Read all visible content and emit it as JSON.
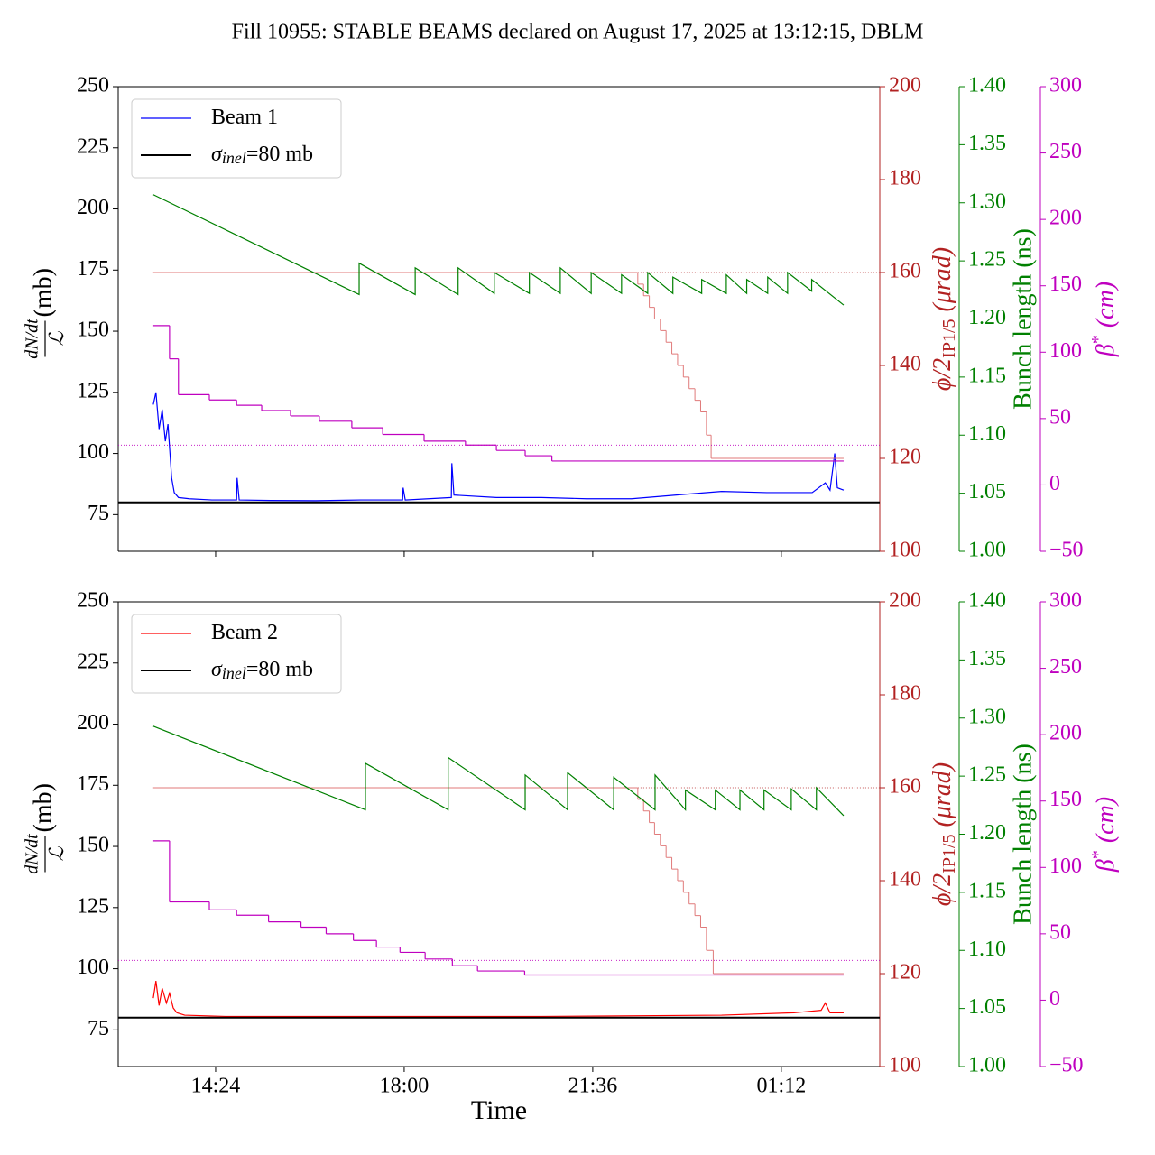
{
  "title": "Fill 10955: STABLE BEAMS declared on August 17, 2025 at 13:12:15, DBLM",
  "chart_data": [
    {
      "type": "line",
      "legend": "upper left",
      "xlim": [
        12.54,
        27.08
      ],
      "xticks": [
        14.4,
        18,
        21.6,
        25.2
      ],
      "ylim": [
        60,
        250
      ],
      "yticks": [
        75,
        100,
        125,
        150,
        175,
        200,
        225,
        250
      ],
      "ylabel": {
        "numerator": "dN/dt",
        "denominator": "ℒ",
        "unit": "(mb)"
      },
      "y2lim": [
        100,
        200
      ],
      "y2ticks": [
        100,
        120,
        140,
        160,
        180,
        200
      ],
      "y2color": "#b22222",
      "y2label": {
        "text": "ϕ/2",
        "subscript": "IP1/5",
        "unit": "(μrad)"
      },
      "y3lim": [
        1.0,
        1.4
      ],
      "y3color": "#008000",
      "y3ticks": [
        {
          "value": 1.0,
          "label": "1.00"
        },
        {
          "value": 1.05,
          "label": "1.05"
        },
        {
          "value": 1.1,
          "label": "1.10"
        },
        {
          "value": 1.15,
          "label": "1.15"
        },
        {
          "value": 1.2,
          "label": "1.20"
        },
        {
          "value": 1.25,
          "label": "1.25"
        },
        {
          "value": 1.3,
          "label": "1.30"
        },
        {
          "value": 1.35,
          "label": "1.35"
        },
        {
          "value": 1.4,
          "label": "1.40"
        }
      ],
      "y3label": "Bunch length (ns)",
      "y4lim": [
        -50,
        300
      ],
      "y4color": "#bf00bf",
      "y4ticks": [
        {
          "value": -50,
          "label": "−50"
        },
        0,
        50,
        100,
        150,
        200,
        250,
        300
      ],
      "y4label": {
        "text": "β",
        "superscript": "*",
        "unit": "(cm)"
      },
      "series": [
        {
          "name": "Beam 1",
          "color": "#0000ff",
          "axis": "y",
          "linewidth": 1.2,
          "x": [
            13.21,
            13.26,
            13.32,
            13.38,
            13.44,
            13.49,
            13.56,
            13.61,
            13.69,
            13.9,
            14.33,
            14.8,
            14.81,
            14.85,
            15.45,
            16.31,
            17.17,
            17.97,
            17.98,
            18.02,
            18.9,
            18.91,
            18.95,
            19.76,
            20.62,
            21.48,
            22.34,
            23.2,
            24.06,
            24.92,
            25.79,
            26.04,
            26.13,
            26.22,
            26.27,
            26.39
          ],
          "values": [
            120,
            125,
            110,
            118,
            105,
            112,
            90,
            84,
            82,
            81.5,
            81,
            81,
            90,
            81,
            80.8,
            80.7,
            81,
            81,
            86,
            81,
            82,
            96,
            83,
            82,
            82,
            81.5,
            81.5,
            83,
            84.5,
            84,
            84,
            88,
            85,
            100,
            86,
            85
          ]
        },
        {
          "name": "σ",
          "name_sub": "inel",
          "name_rest": "=80 mb",
          "color": "#000000",
          "axis": "y",
          "linewidth": 2,
          "x": [
            12.54,
            27.08
          ],
          "values": [
            80,
            80
          ]
        },
        {
          "color": "#b22222",
          "axis": "y2",
          "linewidth": 0.8,
          "style": "dotted",
          "x": [
            13.21,
            27.08
          ],
          "values": [
            160,
            160
          ]
        },
        {
          "color": "#e07a7a",
          "axis": "y2",
          "linewidth": 1,
          "drawstyle": "steps",
          "x": [
            13.21,
            22.46,
            22.57,
            22.68,
            22.78,
            22.89,
            23.0,
            23.11,
            23.22,
            23.33,
            23.44,
            23.55,
            23.66,
            23.77,
            23.86,
            26.39
          ],
          "values": [
            160,
            157.5,
            155,
            152.5,
            150,
            147.5,
            145,
            142.5,
            140,
            137.5,
            135,
            132.5,
            130,
            125,
            120,
            120
          ]
        },
        {
          "color": "#008000",
          "axis": "y3",
          "linewidth": 1.2,
          "x": [
            13.21,
            17.14,
            17.14,
            18.21,
            18.21,
            19.03,
            19.03,
            19.72,
            19.72,
            20.39,
            20.39,
            20.98,
            20.98,
            21.57,
            21.57,
            22.15,
            22.15,
            22.65,
            22.65,
            23.13,
            23.13,
            23.68,
            23.68,
            24.15,
            24.15,
            24.54,
            24.54,
            24.94,
            24.94,
            25.32,
            25.32,
            25.78,
            25.78,
            26.39
          ],
          "values": [
            1.307,
            1.221,
            1.248,
            1.221,
            1.244,
            1.221,
            1.244,
            1.222,
            1.24,
            1.222,
            1.24,
            1.222,
            1.244,
            1.222,
            1.24,
            1.222,
            1.238,
            1.222,
            1.24,
            1.222,
            1.236,
            1.222,
            1.234,
            1.222,
            1.238,
            1.222,
            1.234,
            1.222,
            1.236,
            1.222,
            1.24,
            1.224,
            1.234,
            1.212
          ]
        },
        {
          "color": "#bf00bf",
          "axis": "y4",
          "linewidth": 0.8,
          "style": "dotted",
          "x": [
            12.54,
            27.08
          ],
          "values": [
            30,
            30
          ]
        },
        {
          "color": "#bf00bf",
          "axis": "y4",
          "linewidth": 1.2,
          "drawstyle": "steps",
          "x": [
            13.21,
            13.52,
            13.69,
            14.28,
            14.8,
            15.28,
            15.83,
            16.38,
            17.0,
            17.59,
            18.38,
            19.17,
            19.76,
            20.31,
            20.82,
            26.39
          ],
          "values": [
            120,
            95,
            68,
            64,
            60,
            56,
            52,
            48,
            43,
            38,
            33,
            30,
            26,
            22,
            18,
            18
          ]
        }
      ]
    },
    {
      "type": "line",
      "legend": "upper left",
      "xlim": [
        12.54,
        27.08
      ],
      "xticks": [
        {
          "value": 14.4,
          "label": "14:24"
        },
        {
          "value": 18,
          "label": "18:00"
        },
        {
          "value": 21.6,
          "label": "21:36"
        },
        {
          "value": 25.2,
          "label": "01:12"
        }
      ],
      "xlabel": "Time",
      "ylim": [
        60,
        250
      ],
      "yticks": [
        75,
        100,
        125,
        150,
        175,
        200,
        225,
        250
      ],
      "ylabel": {
        "numerator": "dN/dt",
        "denominator": "ℒ",
        "unit": "(mb)"
      },
      "y2lim": [
        100,
        200
      ],
      "y2ticks": [
        100,
        120,
        140,
        160,
        180,
        200
      ],
      "y2color": "#b22222",
      "y2label": {
        "text": "ϕ/2",
        "subscript": "IP1/5",
        "unit": "(μrad)"
      },
      "y3lim": [
        1.0,
        1.4
      ],
      "y3color": "#008000",
      "y3ticks": [
        {
          "value": 1.0,
          "label": "1.00"
        },
        {
          "value": 1.05,
          "label": "1.05"
        },
        {
          "value": 1.1,
          "label": "1.10"
        },
        {
          "value": 1.15,
          "label": "1.15"
        },
        {
          "value": 1.2,
          "label": "1.20"
        },
        {
          "value": 1.25,
          "label": "1.25"
        },
        {
          "value": 1.3,
          "label": "1.30"
        },
        {
          "value": 1.35,
          "label": "1.35"
        },
        {
          "value": 1.4,
          "label": "1.40"
        }
      ],
      "y3label": "Bunch length (ns)",
      "y4lim": [
        -50,
        300
      ],
      "y4color": "#bf00bf",
      "y4ticks": [
        {
          "value": -50,
          "label": "−50"
        },
        0,
        50,
        100,
        150,
        200,
        250,
        300
      ],
      "y4label": {
        "text": "β",
        "superscript": "*",
        "unit": "(cm)"
      },
      "series": [
        {
          "name": "Beam 2",
          "color": "#ff0000",
          "axis": "y",
          "linewidth": 1.2,
          "x": [
            13.21,
            13.26,
            13.32,
            13.38,
            13.46,
            13.52,
            13.59,
            13.66,
            13.81,
            14.59,
            17.17,
            20.62,
            24.06,
            25.44,
            25.96,
            26.04,
            26.13,
            26.39
          ],
          "values": [
            88,
            95,
            85,
            92,
            86,
            90,
            84,
            82,
            81,
            80.5,
            80.5,
            80.5,
            81,
            82,
            83,
            86,
            82,
            82
          ]
        },
        {
          "name": "σ",
          "name_sub": "inel",
          "name_rest": "=80 mb",
          "color": "#000000",
          "axis": "y",
          "linewidth": 2,
          "x": [
            12.54,
            27.08
          ],
          "values": [
            80,
            80
          ]
        },
        {
          "color": "#b22222",
          "axis": "y2",
          "linewidth": 0.8,
          "style": "dotted",
          "x": [
            13.21,
            27.08
          ],
          "values": [
            160,
            160
          ]
        },
        {
          "color": "#e07a7a",
          "axis": "y2",
          "linewidth": 1,
          "drawstyle": "steps",
          "x": [
            13.21,
            22.46,
            22.57,
            22.68,
            22.78,
            22.89,
            23.0,
            23.11,
            23.22,
            23.33,
            23.44,
            23.55,
            23.66,
            23.77,
            23.9,
            26.39
          ],
          "values": [
            160,
            157.5,
            155,
            152.5,
            150,
            147.5,
            145,
            142.5,
            140,
            137.5,
            135,
            132.5,
            130,
            125,
            120,
            120
          ]
        },
        {
          "color": "#008000",
          "axis": "y3",
          "linewidth": 1.2,
          "x": [
            13.21,
            17.26,
            17.26,
            18.84,
            18.84,
            20.31,
            20.31,
            21.12,
            21.12,
            22.0,
            22.0,
            22.79,
            22.79,
            23.37,
            23.37,
            23.94,
            23.94,
            24.41,
            24.41,
            24.87,
            24.87,
            25.39,
            25.39,
            25.87,
            25.87,
            26.39
          ],
          "values": [
            1.293,
            1.221,
            1.261,
            1.221,
            1.266,
            1.221,
            1.251,
            1.221,
            1.253,
            1.221,
            1.249,
            1.221,
            1.251,
            1.221,
            1.238,
            1.221,
            1.238,
            1.221,
            1.238,
            1.221,
            1.238,
            1.221,
            1.239,
            1.221,
            1.24,
            1.216
          ]
        },
        {
          "color": "#bf00bf",
          "axis": "y4",
          "linewidth": 0.8,
          "style": "dotted",
          "x": [
            12.54,
            27.08
          ],
          "values": [
            30,
            30
          ]
        },
        {
          "color": "#bf00bf",
          "axis": "y4",
          "linewidth": 1.2,
          "drawstyle": "steps",
          "x": [
            13.21,
            13.52,
            14.28,
            14.8,
            15.41,
            16.03,
            16.51,
            17.03,
            17.47,
            17.92,
            18.4,
            18.92,
            19.4,
            20.3,
            26.39
          ],
          "values": [
            120,
            74,
            68,
            64,
            59,
            55,
            50,
            45,
            40,
            36,
            31,
            26,
            22,
            19,
            19
          ]
        }
      ]
    }
  ]
}
